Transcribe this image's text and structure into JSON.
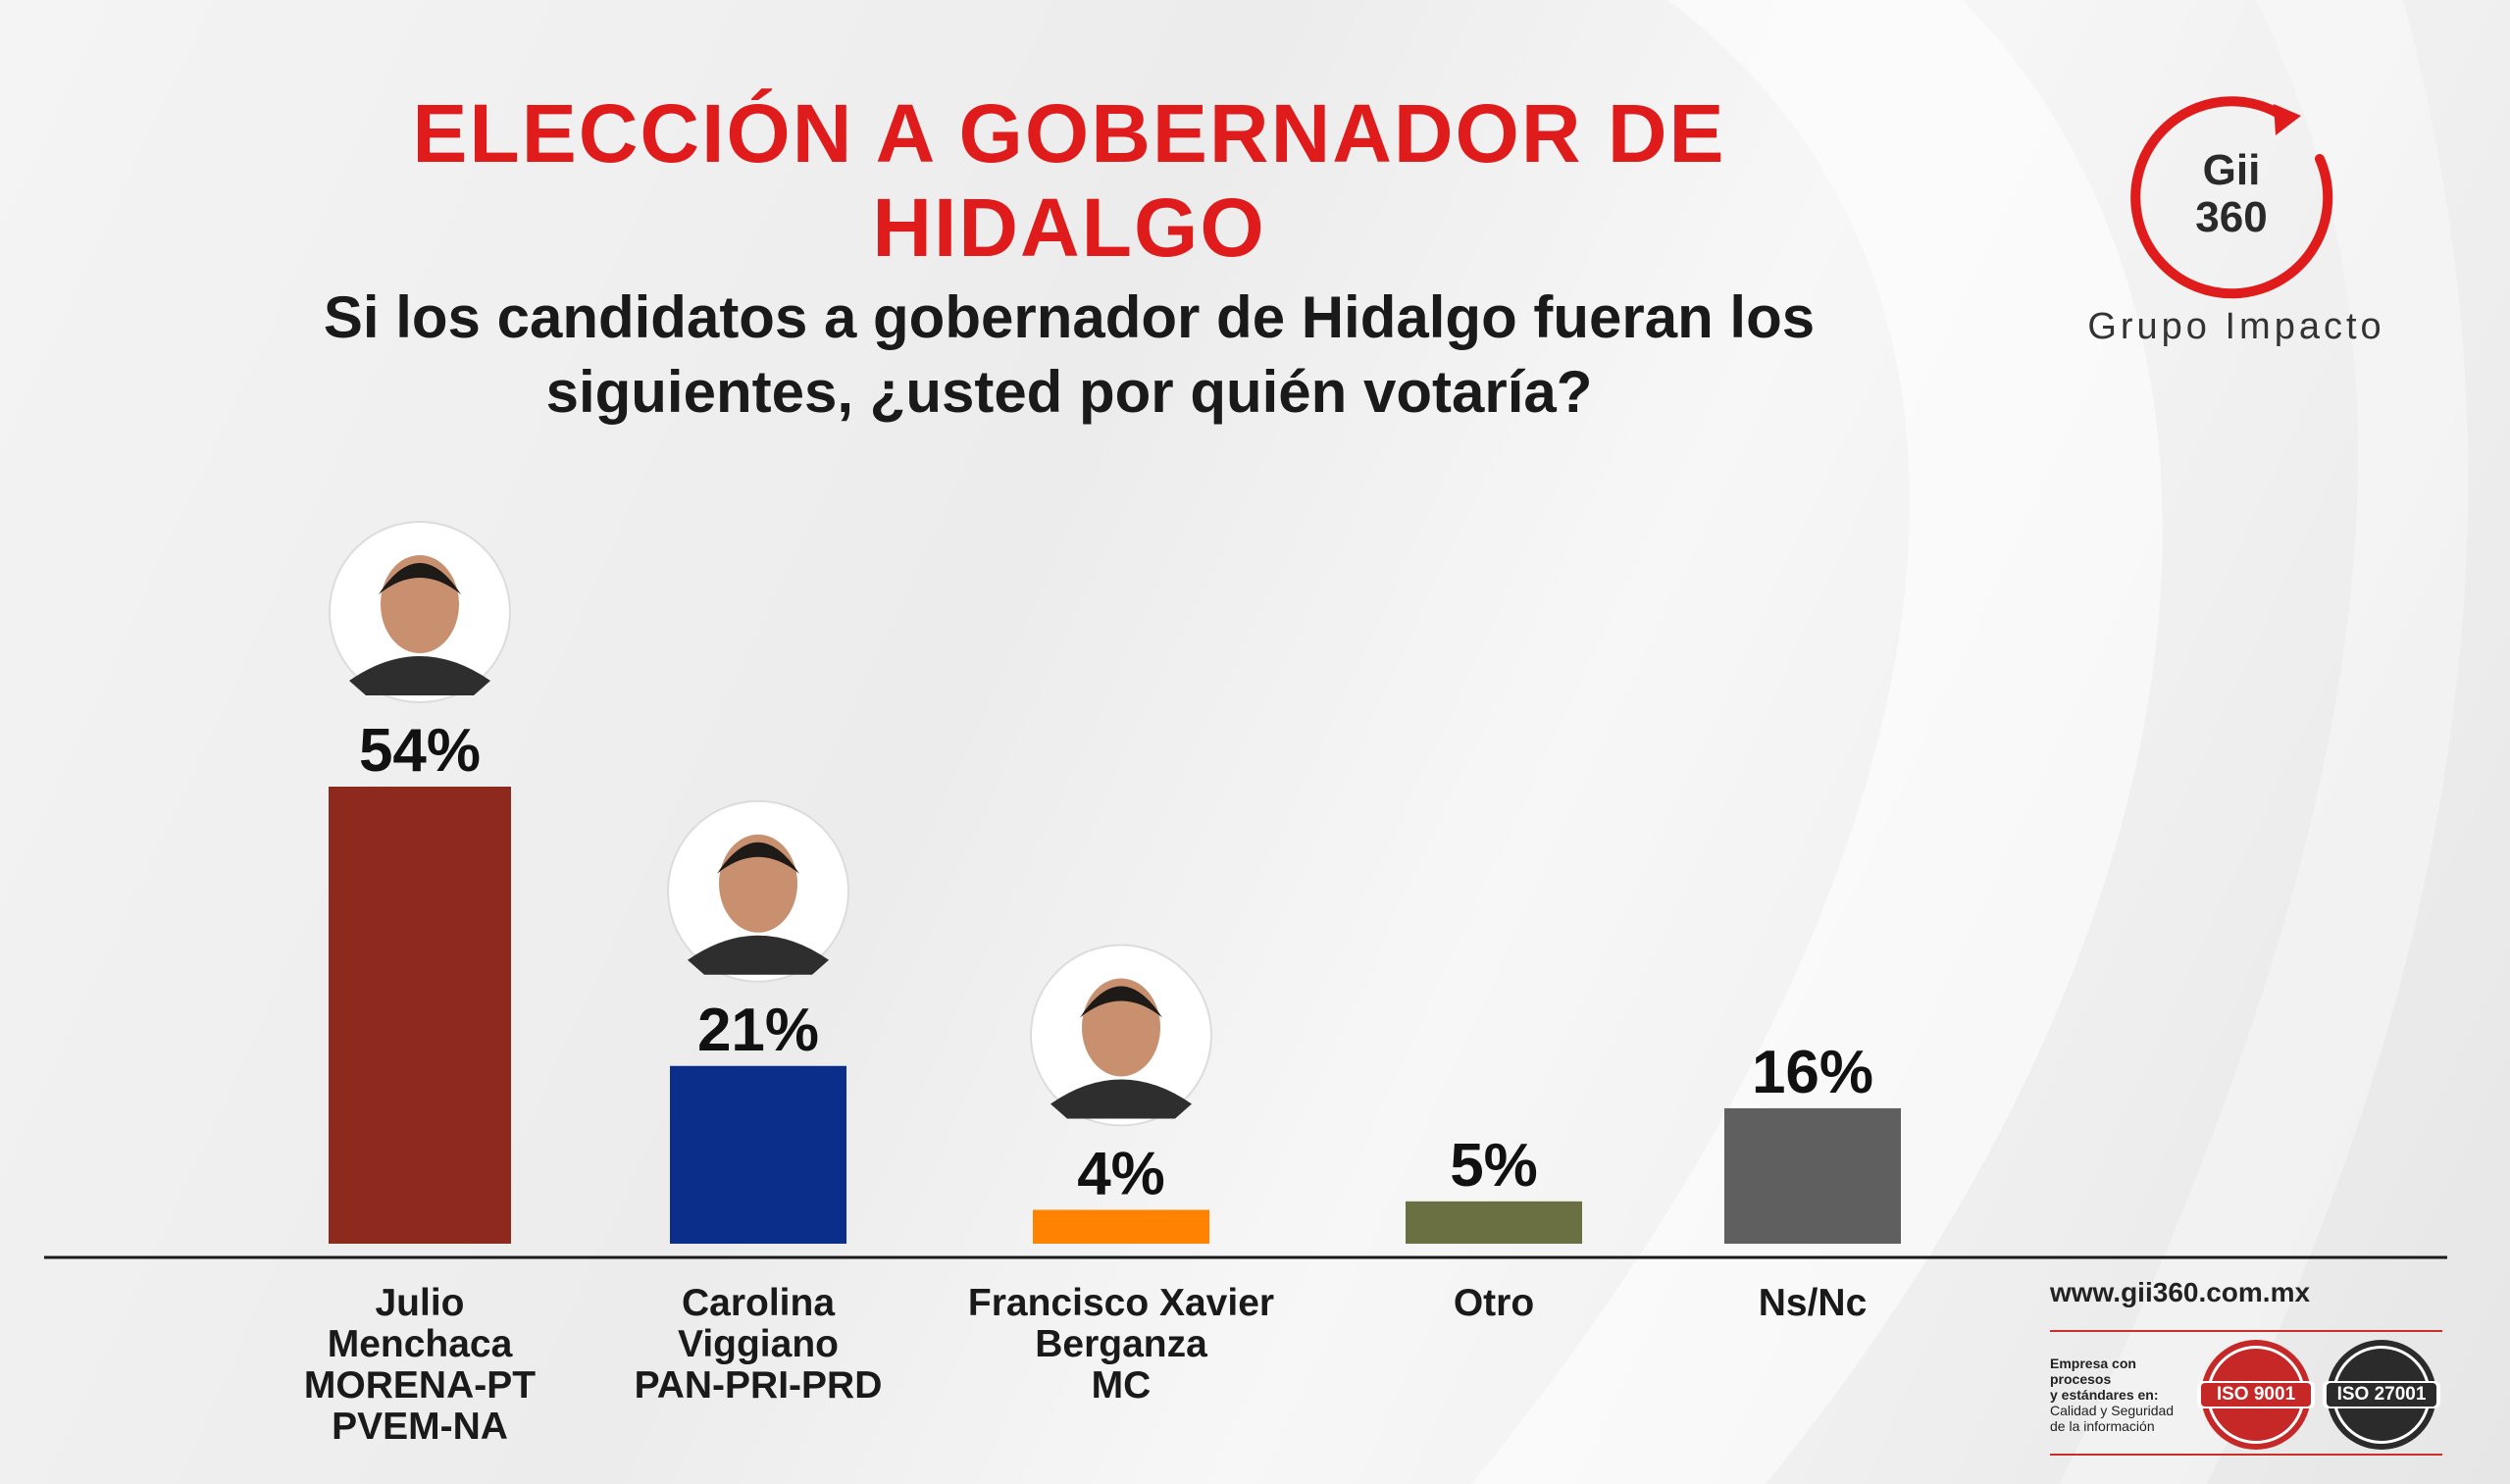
{
  "header": {
    "title": "ELECCIÓN A GOBERNADOR DE HIDALGO",
    "subtitle": "Si los candidatos a gobernador de Hidalgo fueran los siguientes, ¿usted por quién votaría?"
  },
  "logo": {
    "mark_line1": "Gii",
    "mark_line2": "360",
    "name": "Grupo Impacto",
    "accent_color": "#e01b1b"
  },
  "chart_data": {
    "type": "bar",
    "categories": [
      [
        "Julio",
        "Menchaca",
        "MORENA-PT",
        "PVEM-NA"
      ],
      [
        "Carolina",
        "Viggiano",
        "PAN-PRI-PRD"
      ],
      [
        "Francisco Xavier",
        "Berganza",
        "MC"
      ],
      [
        "Otro"
      ],
      [
        "Ns/Nc"
      ]
    ],
    "values": [
      54,
      21,
      4,
      5,
      16
    ],
    "value_labels": [
      "54%",
      "21%",
      "4%",
      "5%",
      "16%"
    ],
    "colors": [
      "#8d2a1d",
      "#0a2e8a",
      "#ff8200",
      "#6b7042",
      "#5f5f5f"
    ],
    "photos": [
      true,
      true,
      true,
      false,
      false
    ],
    "ylim": [
      0,
      60
    ],
    "grid": false,
    "legend": "none"
  },
  "footer": {
    "website": "www.gii360.com.mx",
    "iso_line1": "Empresa con procesos",
    "iso_line2": "y estándares en:",
    "iso_line3": "Calidad y Seguridad",
    "iso_line4": "de la información",
    "seal1": "ISO 9001",
    "seal2": "ISO 27001"
  }
}
